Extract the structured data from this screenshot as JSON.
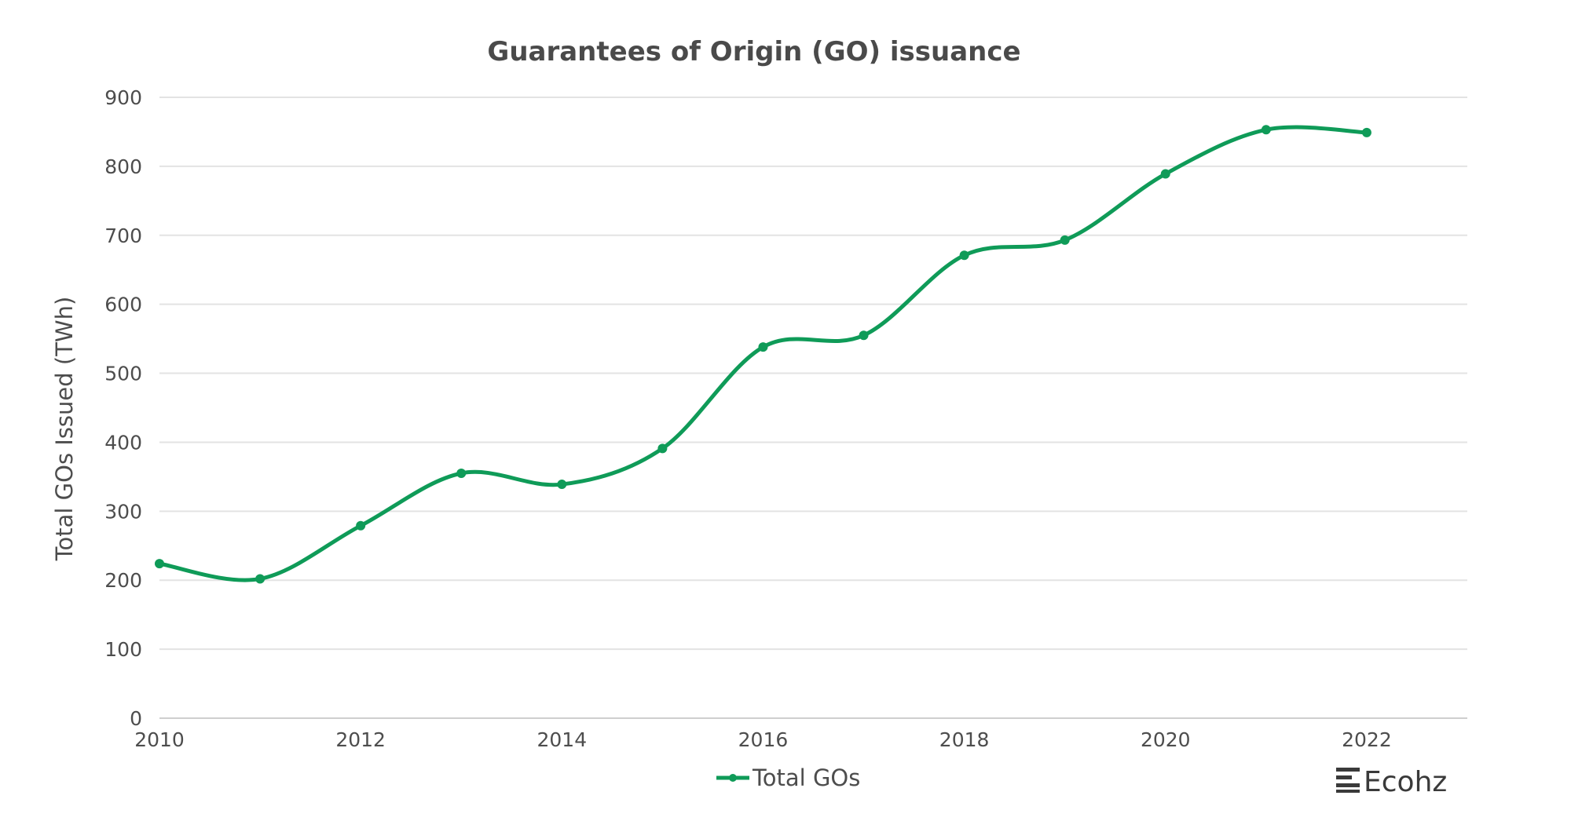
{
  "chart_data": {
    "type": "line",
    "title": "Guarantees of Origin (GO) issuance",
    "xlabel": "",
    "ylabel": "Total GOs Issued (TWh)",
    "x": [
      2010,
      2011,
      2012,
      2013,
      2014,
      2015,
      2016,
      2017,
      2018,
      2019,
      2020,
      2021,
      2022
    ],
    "series": [
      {
        "name": "Total GOs",
        "values": [
          224,
          202,
          279,
          355,
          339,
          391,
          538,
          555,
          671,
          693,
          789,
          853,
          849
        ],
        "color": "#0f9b58"
      }
    ],
    "xlim": [
      2010,
      2023
    ],
    "ylim": [
      0,
      900
    ],
    "xticks": [
      "2010",
      "2012",
      "2014",
      "2016",
      "2018",
      "2020",
      "2022"
    ],
    "yticks": [
      "0",
      "100",
      "200",
      "300",
      "400",
      "500",
      "600",
      "700",
      "800",
      "900"
    ],
    "grid": true,
    "smooth": true,
    "legend_position": "bottom-center"
  },
  "branding": {
    "logo_text": "Ecohz"
  }
}
